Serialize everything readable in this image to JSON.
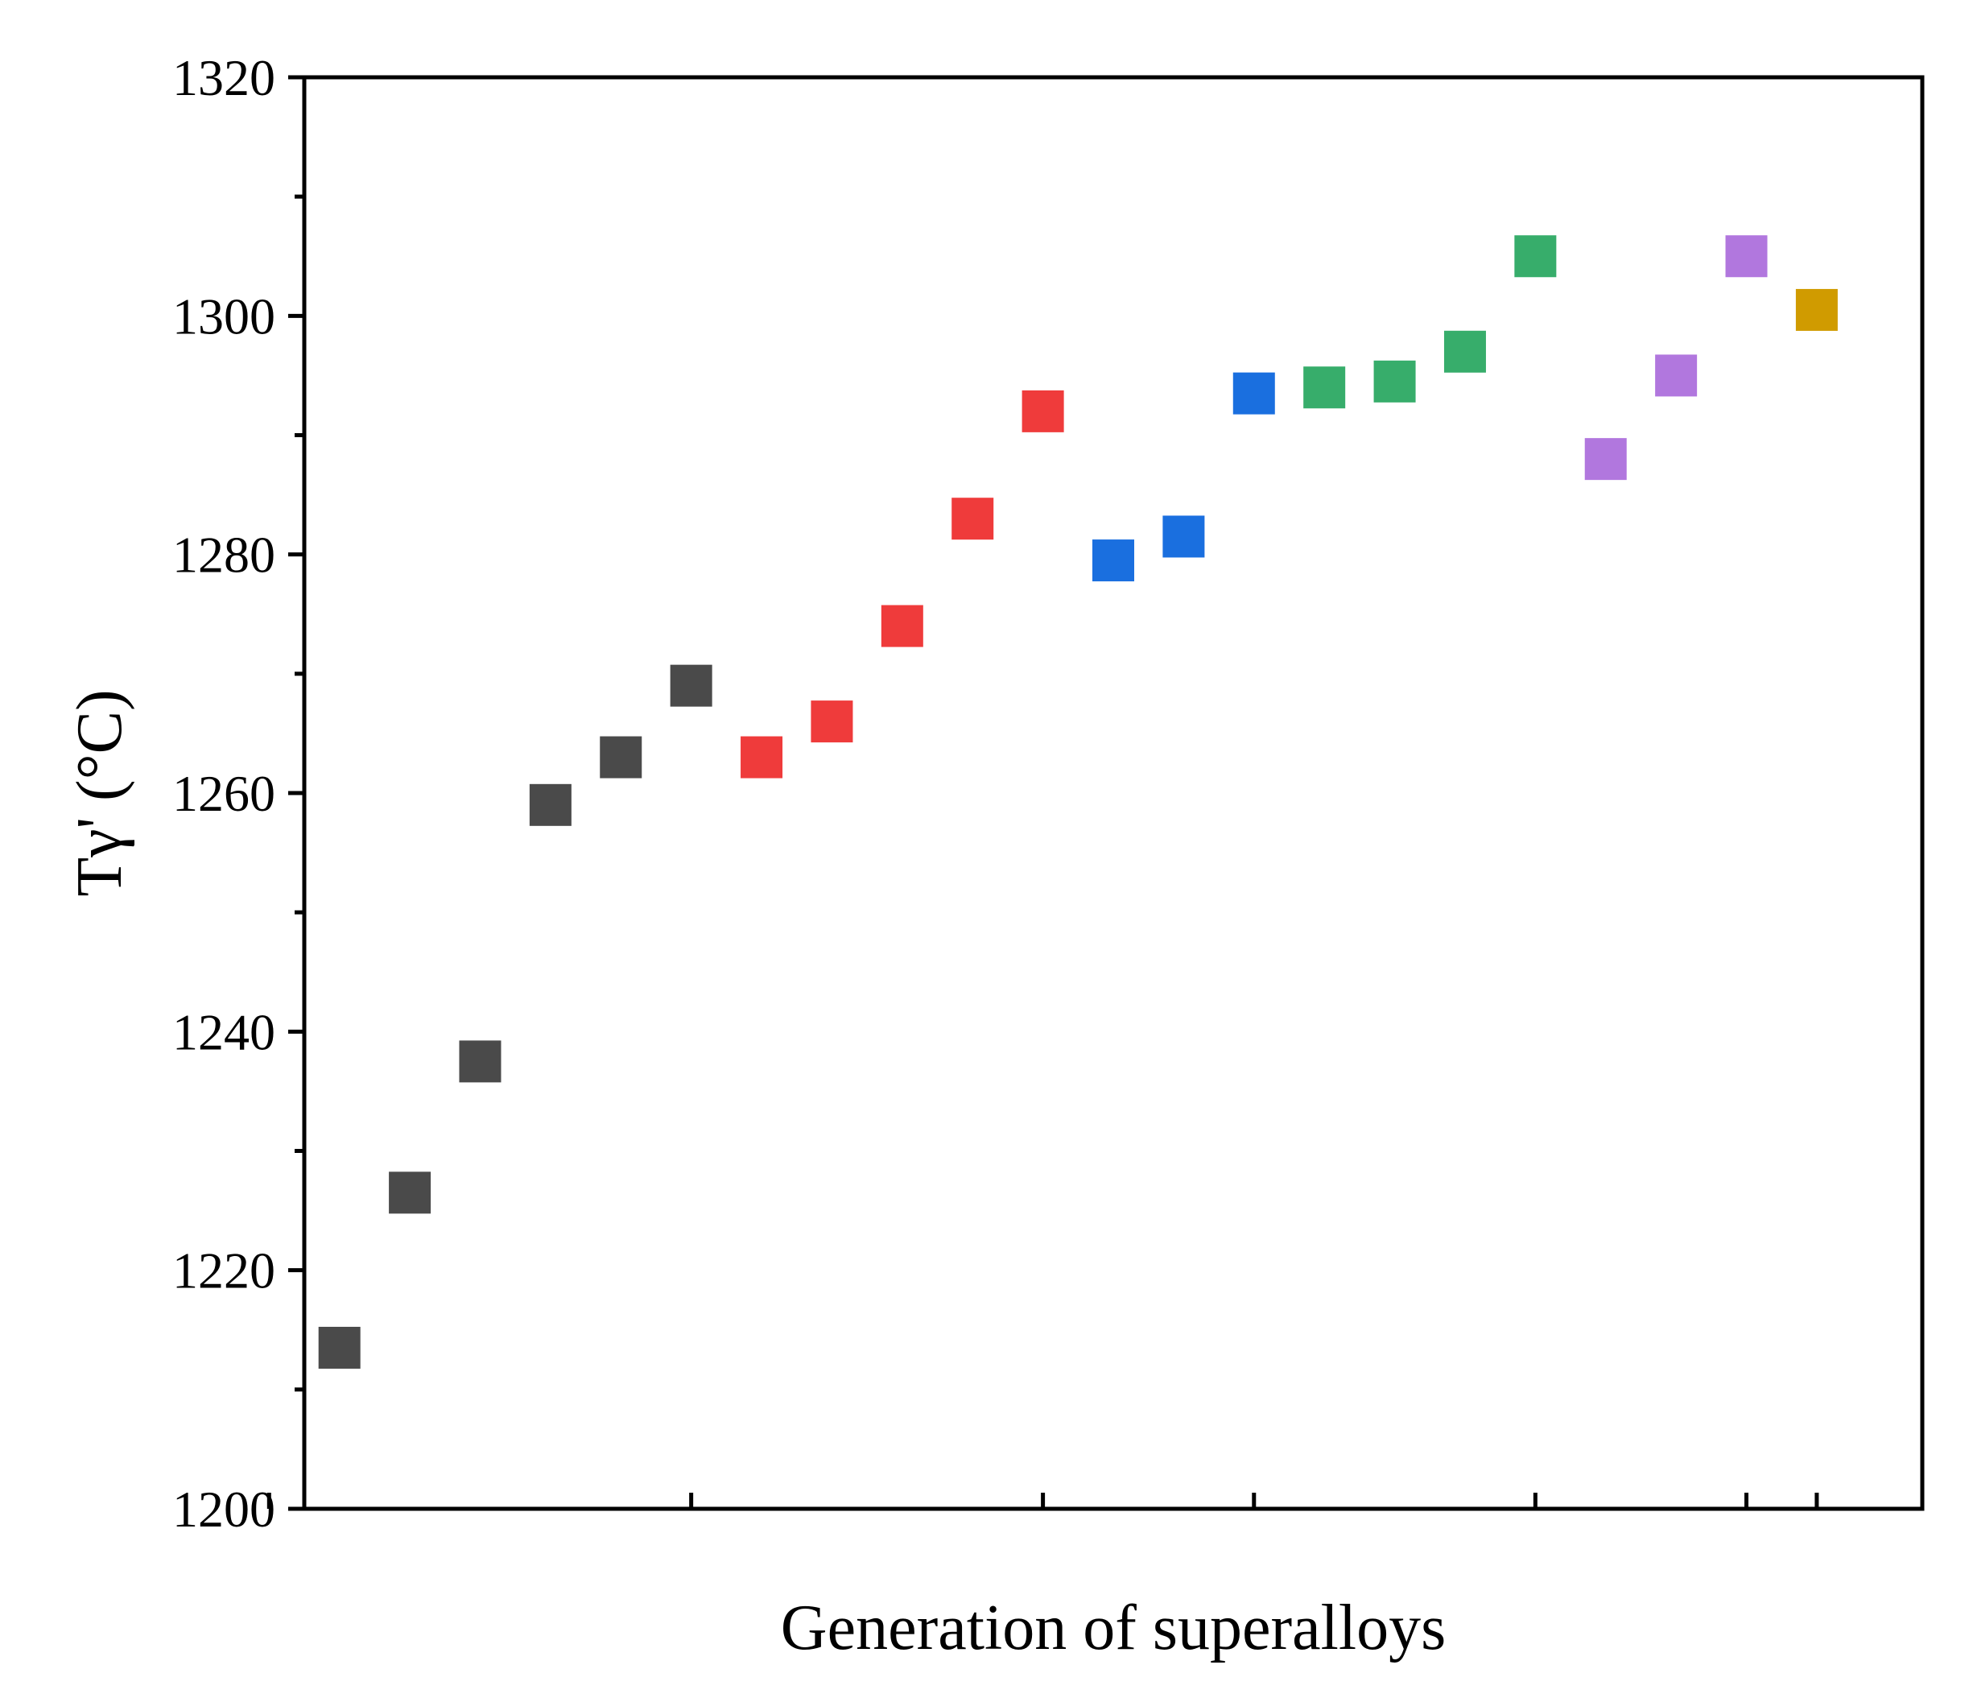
{
  "chart_data": {
    "type": "scatter",
    "xlabel": "Generation of superalloys",
    "ylabel": "Tγ' (°C)",
    "ylim": [
      1200,
      1320
    ],
    "yticks": [
      "1200",
      "1220",
      "1240",
      "1260",
      "1280",
      "1300",
      "1320"
    ],
    "y_minor_ticks": [
      1210,
      1230,
      1250,
      1270,
      1290,
      1310
    ],
    "xlim": [
      0.5,
      23.5
    ],
    "x_major_ticks": [
      0,
      6,
      11,
      14,
      18,
      21,
      22
    ],
    "grid": false,
    "legend": "none",
    "marker": "square",
    "series": [
      {
        "color": "#4a4a4a",
        "points": [
          [
            1,
            1213.5
          ],
          [
            2,
            1226.5
          ],
          [
            3,
            1237.5
          ],
          [
            4,
            1259
          ],
          [
            5,
            1263
          ],
          [
            6,
            1269
          ]
        ]
      },
      {
        "color": "#ef3b3b",
        "points": [
          [
            7,
            1263
          ],
          [
            8,
            1266
          ],
          [
            9,
            1274
          ],
          [
            10,
            1283
          ],
          [
            11,
            1292
          ]
        ]
      },
      {
        "color": "#1a6fdf",
        "points": [
          [
            12,
            1279.5
          ],
          [
            13,
            1281.5
          ],
          [
            14,
            1293.5
          ]
        ]
      },
      {
        "color": "#37ad6b",
        "points": [
          [
            15,
            1294
          ],
          [
            16,
            1294.5
          ],
          [
            17,
            1297
          ],
          [
            18,
            1305
          ]
        ]
      },
      {
        "color": "#b177de",
        "points": [
          [
            19,
            1288
          ],
          [
            20,
            1295
          ],
          [
            21,
            1305
          ]
        ]
      },
      {
        "color": "#d09b00",
        "points": [
          [
            22,
            1300.5
          ]
        ]
      }
    ]
  }
}
